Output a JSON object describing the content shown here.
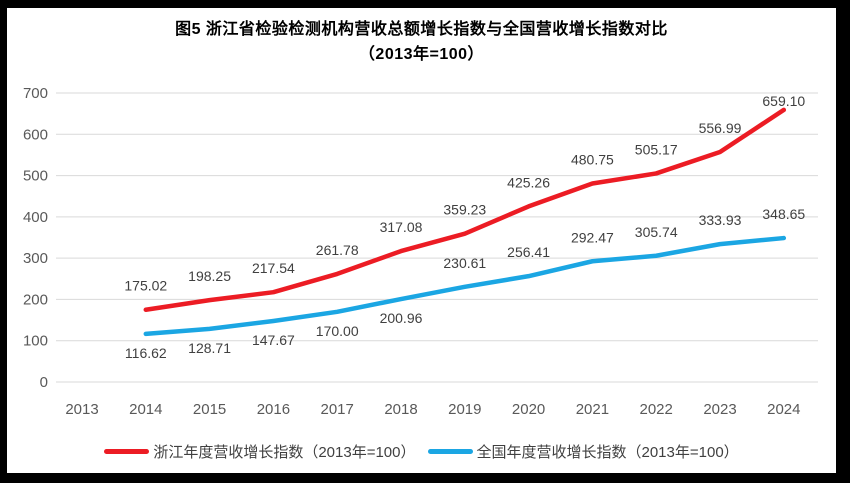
{
  "window": {
    "frame_color": "#000000",
    "canvas_color": "#ffffff"
  },
  "chart_data": {
    "type": "line",
    "title": "图5  浙江省检验检测机构营收总额增长指数与全国营收增长指数对比",
    "subtitle": "（2013年=100）",
    "categories": [
      "2013",
      "2014",
      "2015",
      "2016",
      "2017",
      "2018",
      "2019",
      "2020",
      "2021",
      "2022",
      "2023",
      "2024"
    ],
    "series": [
      {
        "name": "浙江年度营收增长指数（2013年=100）",
        "color": "#ec1c24",
        "values": [
          null,
          175.02,
          198.25,
          217.54,
          261.78,
          317.08,
          359.23,
          425.26,
          480.75,
          505.17,
          556.99,
          659.1
        ],
        "label_positions": [
          null,
          "above",
          "above",
          "above",
          "above",
          "above",
          "above",
          "above",
          "above",
          "above",
          "above",
          "end"
        ]
      },
      {
        "name": "全国年度营收增长指数（2013年=100）",
        "color": "#1ba6e3",
        "values": [
          null,
          116.62,
          128.71,
          147.67,
          170.0,
          200.96,
          230.61,
          256.41,
          292.47,
          305.74,
          333.93,
          348.65
        ],
        "label_positions": [
          null,
          "below",
          "below",
          "below",
          "below",
          "below",
          "above",
          "above",
          "above",
          "above",
          "above",
          "above"
        ]
      }
    ],
    "ylim": [
      0,
      700
    ],
    "yticks": [
      0,
      100,
      200,
      300,
      400,
      500,
      600,
      700
    ],
    "grid": true,
    "grid_color": "#d9d9d9",
    "axis_label_color": "#595959",
    "data_label_color": "#404040",
    "data_label_decimals": 2,
    "legend_position": "bottom"
  }
}
